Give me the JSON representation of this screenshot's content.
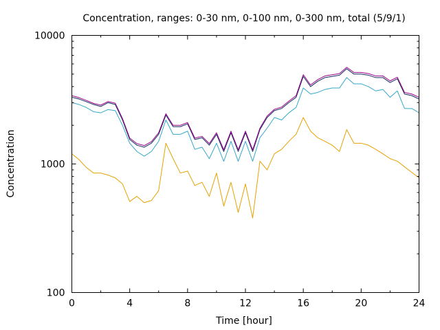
{
  "chart_data": {
    "type": "line",
    "title": "Concentration, ranges: 0-30 nm, 0-100 nm, 0-300 nm, total (5/9/1)",
    "xlabel": "Time [hour]",
    "ylabel": "Concentration",
    "xlim": [
      0,
      24
    ],
    "ylim": [
      100,
      10000
    ],
    "yscale": "log",
    "xticks": [
      0,
      4,
      8,
      12,
      16,
      20,
      24
    ],
    "xtick_labels": [
      "0",
      "4",
      "8",
      "12",
      "16",
      "20",
      "24"
    ],
    "yticks": [
      100,
      1000,
      10000
    ],
    "ytick_labels": [
      "100",
      "1000",
      "10000"
    ],
    "grid": false,
    "x": [
      0,
      0.5,
      1,
      1.5,
      2,
      2.5,
      3,
      3.5,
      4,
      4.5,
      5,
      5.5,
      6,
      6.5,
      7,
      7.5,
      8,
      8.5,
      9,
      9.5,
      10,
      10.5,
      11,
      11.5,
      12,
      12.5,
      13,
      13.5,
      14,
      14.5,
      15,
      15.5,
      16,
      16.5,
      17,
      17.5,
      18,
      18.5,
      19,
      19.5,
      20,
      20.5,
      21,
      21.5,
      22,
      22.5,
      23,
      23.5,
      24
    ],
    "series": [
      {
        "name": "0-30 nm",
        "color": "#e5a100",
        "values": [
          1200,
          1080,
          940,
          850,
          850,
          820,
          780,
          700,
          510,
          560,
          500,
          520,
          620,
          1450,
          1100,
          850,
          880,
          680,
          720,
          560,
          850,
          470,
          720,
          420,
          700,
          380,
          1050,
          900,
          1200,
          1300,
          1500,
          1700,
          2300,
          1800,
          1600,
          1500,
          1400,
          1250,
          1850,
          1450,
          1450,
          1400,
          1300,
          1200,
          1100,
          1050,
          950,
          860,
          780
        ]
      },
      {
        "name": "0-100 nm",
        "color": "#35a8c8",
        "values": [
          3000,
          2900,
          2750,
          2550,
          2500,
          2650,
          2600,
          2000,
          1450,
          1250,
          1150,
          1250,
          1500,
          2200,
          1700,
          1700,
          1800,
          1300,
          1350,
          1100,
          1450,
          1050,
          1500,
          1050,
          1500,
          1050,
          1600,
          1900,
          2300,
          2200,
          2500,
          2750,
          3900,
          3500,
          3600,
          3800,
          3900,
          3900,
          4700,
          4200,
          4200,
          4000,
          3700,
          3800,
          3300,
          3700,
          2700,
          2700,
          2500
        ]
      },
      {
        "name": "0-300 nm",
        "color": "#132b5e",
        "values": [
          3300,
          3200,
          3050,
          2900,
          2800,
          3000,
          2900,
          2200,
          1550,
          1400,
          1350,
          1450,
          1700,
          2400,
          1950,
          1950,
          2050,
          1550,
          1600,
          1400,
          1700,
          1250,
          1750,
          1250,
          1750,
          1250,
          1850,
          2300,
          2600,
          2700,
          3000,
          3300,
          4800,
          4000,
          4400,
          4700,
          4800,
          4900,
          5500,
          5000,
          5000,
          4900,
          4700,
          4700,
          4300,
          4600,
          3500,
          3400,
          3200
        ]
      },
      {
        "name": "total",
        "color": "#9b008a",
        "values": [
          3400,
          3280,
          3120,
          2960,
          2870,
          3060,
          2970,
          2260,
          1590,
          1440,
          1390,
          1490,
          1750,
          2460,
          2000,
          2000,
          2100,
          1590,
          1640,
          1440,
          1750,
          1290,
          1800,
          1290,
          1800,
          1290,
          1900,
          2360,
          2660,
          2770,
          3080,
          3400,
          4950,
          4120,
          4530,
          4840,
          4940,
          5050,
          5650,
          5150,
          5150,
          5050,
          4840,
          4840,
          4430,
          4730,
          3600,
          3500,
          3300
        ]
      }
    ]
  }
}
